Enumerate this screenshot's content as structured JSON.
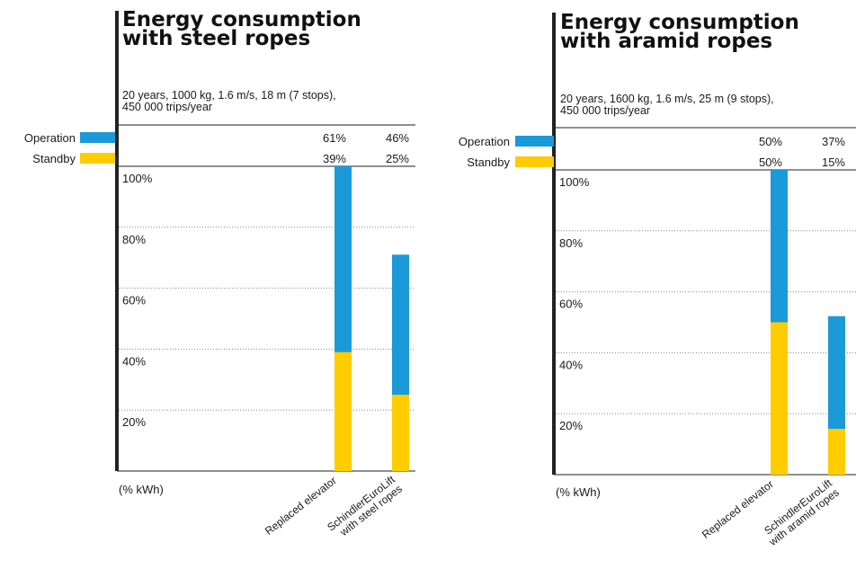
{
  "colors": {
    "operation": "#1a9ad9",
    "standby": "#ffcc00",
    "axis": "#222222",
    "grid": "#888888"
  },
  "chart_data": [
    {
      "type": "bar",
      "stacked": true,
      "title": "Energy consumption\nwith steel ropes",
      "subtitle": "20  years, 1000 kg, 1.6 m/s, 18 m (7 stops),\n450 000 trips/year",
      "unit_label": "(% kWh)",
      "legend": [
        "Operation",
        "Standby"
      ],
      "legend_placement": "left",
      "categories": [
        "Replaced elevator",
        "SchindlerEuroLift\nwith steel ropes"
      ],
      "series": [
        {
          "name": "Operation",
          "values": [
            61,
            46
          ],
          "labels": [
            "61%",
            "46%"
          ]
        },
        {
          "name": "Standby",
          "values": [
            39,
            25
          ],
          "labels": [
            "39%",
            "25%"
          ]
        }
      ],
      "yticks": [
        "20%",
        "40%",
        "60%",
        "80%",
        "100%"
      ],
      "ylim": [
        0,
        100
      ],
      "grid": "dotted horizontal"
    },
    {
      "type": "bar",
      "stacked": true,
      "title": "Energy consumption\nwith aramid ropes",
      "subtitle": "20 years, 1600 kg, 1.6 m/s, 25 m (9 stops),\n450 000 trips/year",
      "unit_label": "(% kWh)",
      "legend": [
        "Operation",
        "Standby"
      ],
      "legend_placement": "left",
      "categories": [
        "Replaced elevator",
        "SchindlerEuroLift\nwith aramid ropes"
      ],
      "series": [
        {
          "name": "Operation",
          "values": [
            50,
            37
          ],
          "labels": [
            "50%",
            "37%"
          ]
        },
        {
          "name": "Standby",
          "values": [
            50,
            15
          ],
          "labels": [
            "50%",
            "15%"
          ]
        }
      ],
      "yticks": [
        "20%",
        "40%",
        "60%",
        "80%",
        "100%"
      ],
      "ylim": [
        0,
        100
      ],
      "grid": "dotted horizontal"
    }
  ]
}
